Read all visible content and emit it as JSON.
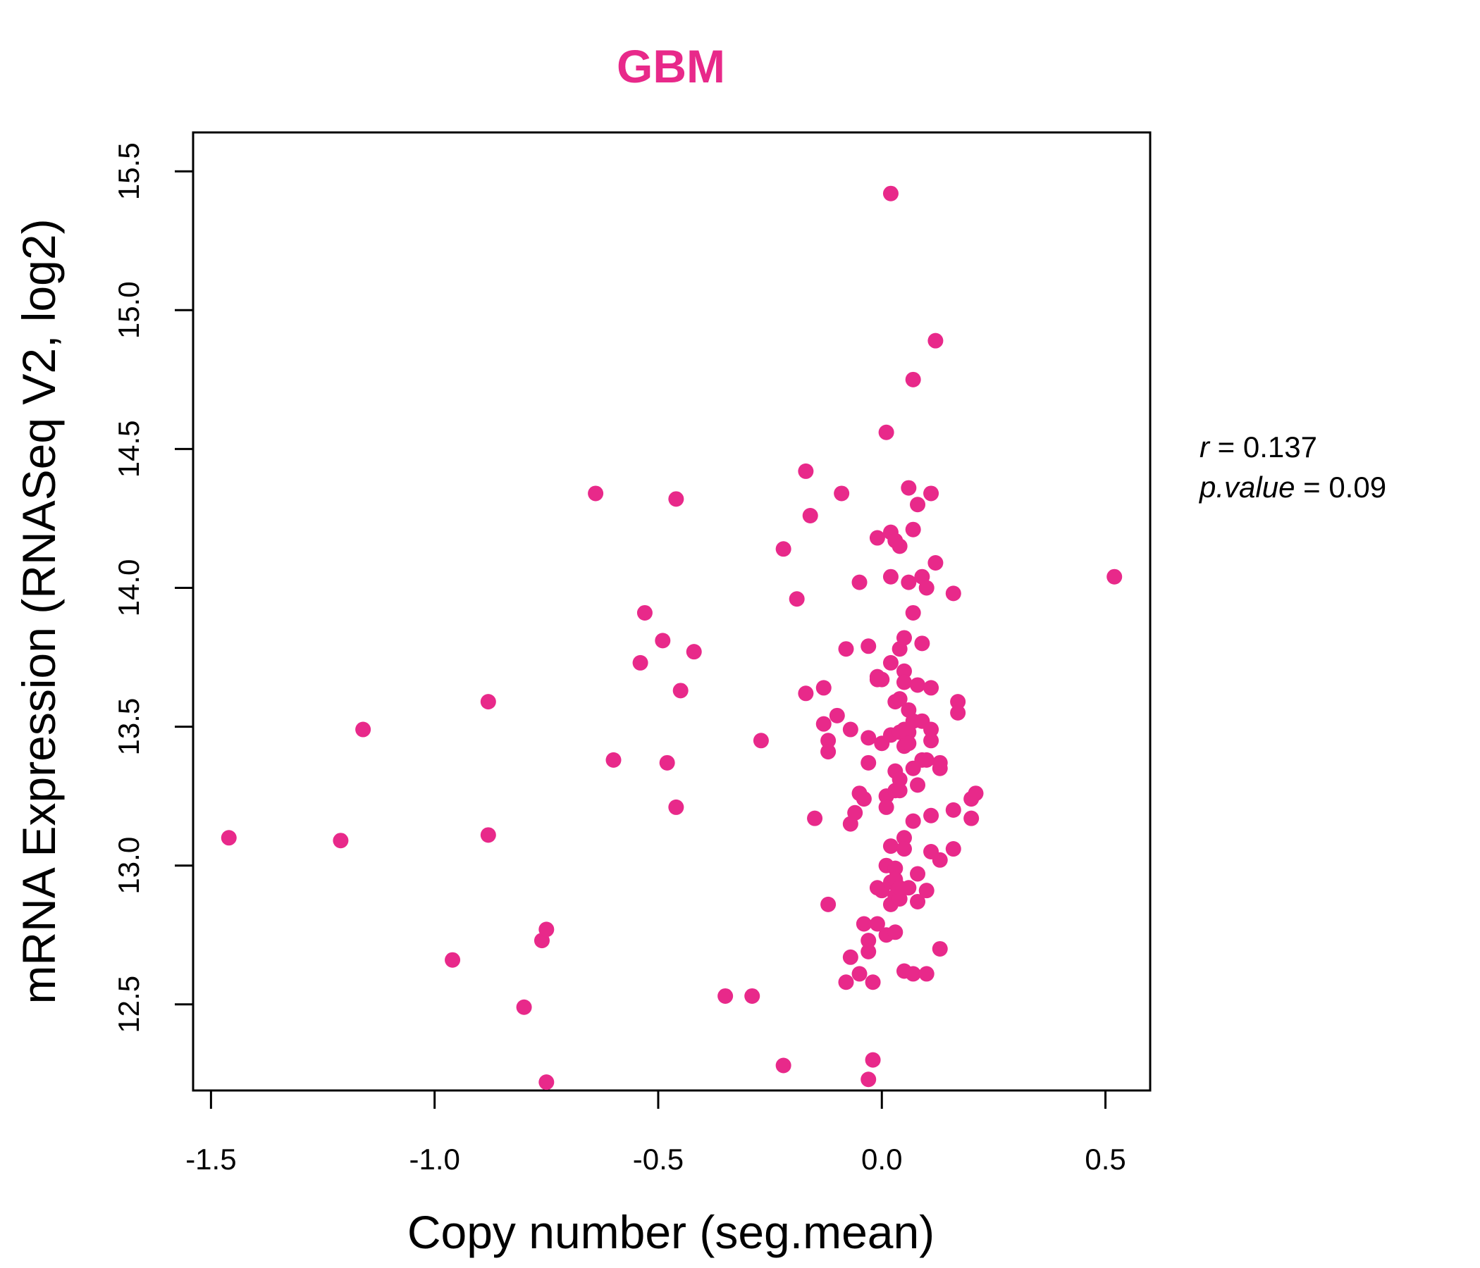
{
  "chart_data": {
    "type": "scatter",
    "title": "GBM",
    "xlabel": "Copy number (seg.mean)",
    "ylabel": "mRNA Expression (RNASeq V2, log2)",
    "xlim": [
      -1.54,
      0.6
    ],
    "ylim": [
      12.19,
      15.64
    ],
    "x_ticks": [
      -1.5,
      -1.0,
      -0.5,
      0.0,
      0.5
    ],
    "x_tick_labels": [
      "-1.5",
      "-1.0",
      "-0.5",
      "0.0",
      "0.5"
    ],
    "y_ticks": [
      12.5,
      13.0,
      13.5,
      14.0,
      14.5,
      15.0,
      15.5
    ],
    "y_tick_labels": [
      "12.5",
      "13.0",
      "13.5",
      "14.0",
      "14.5",
      "15.0",
      "15.5"
    ],
    "grid": false,
    "legend": "none",
    "color": "#E8298A",
    "annotations": {
      "r_label": "r",
      "r_value": "0.137",
      "p_label": "p.value",
      "p_value": "0.09"
    },
    "points": [
      [
        -1.46,
        13.1
      ],
      [
        -1.21,
        13.09
      ],
      [
        -1.16,
        13.49
      ],
      [
        -0.96,
        12.66
      ],
      [
        -0.88,
        13.59
      ],
      [
        -0.88,
        13.11
      ],
      [
        -0.8,
        12.49
      ],
      [
        -0.76,
        12.73
      ],
      [
        -0.75,
        12.77
      ],
      [
        -0.75,
        12.22
      ],
      [
        -0.64,
        14.34
      ],
      [
        -0.6,
        13.38
      ],
      [
        -0.53,
        13.91
      ],
      [
        -0.54,
        13.73
      ],
      [
        -0.49,
        13.81
      ],
      [
        -0.48,
        13.37
      ],
      [
        -0.46,
        14.32
      ],
      [
        -0.46,
        13.21
      ],
      [
        -0.45,
        13.63
      ],
      [
        -0.42,
        13.77
      ],
      [
        -0.35,
        12.53
      ],
      [
        -0.29,
        12.53
      ],
      [
        -0.27,
        13.45
      ],
      [
        -0.22,
        14.14
      ],
      [
        -0.22,
        12.28
      ],
      [
        -0.19,
        13.96
      ],
      [
        -0.17,
        14.42
      ],
      [
        -0.16,
        14.26
      ],
      [
        -0.17,
        13.62
      ],
      [
        -0.15,
        13.17
      ],
      [
        -0.13,
        13.64
      ],
      [
        -0.13,
        13.51
      ],
      [
        -0.12,
        13.45
      ],
      [
        -0.12,
        13.41
      ],
      [
        -0.12,
        12.86
      ],
      [
        -0.1,
        13.54
      ],
      [
        -0.09,
        14.34
      ],
      [
        -0.08,
        13.78
      ],
      [
        -0.07,
        13.49
      ],
      [
        -0.07,
        13.15
      ],
      [
        -0.07,
        12.67
      ],
      [
        -0.08,
        12.58
      ],
      [
        -0.06,
        13.19
      ],
      [
        -0.05,
        14.02
      ],
      [
        -0.05,
        13.26
      ],
      [
        -0.04,
        13.24
      ],
      [
        -0.05,
        12.61
      ],
      [
        -0.04,
        12.79
      ],
      [
        -0.03,
        13.79
      ],
      [
        -0.03,
        13.46
      ],
      [
        -0.03,
        13.37
      ],
      [
        -0.03,
        12.73
      ],
      [
        -0.03,
        12.69
      ],
      [
        -0.02,
        12.58
      ],
      [
        -0.02,
        12.3
      ],
      [
        -0.03,
        12.23
      ],
      [
        -0.01,
        14.18
      ],
      [
        -0.01,
        13.68
      ],
      [
        -0.01,
        13.67
      ],
      [
        -0.01,
        12.92
      ],
      [
        -0.01,
        12.79
      ],
      [
        0.0,
        13.67
      ],
      [
        0.0,
        13.44
      ],
      [
        0.01,
        14.56
      ],
      [
        0.01,
        13.25
      ],
      [
        0.01,
        13.21
      ],
      [
        0.01,
        13.0
      ],
      [
        0.0,
        12.91
      ],
      [
        0.01,
        12.75
      ],
      [
        0.02,
        15.42
      ],
      [
        0.02,
        14.2
      ],
      [
        0.02,
        14.04
      ],
      [
        0.02,
        13.73
      ],
      [
        0.02,
        13.47
      ],
      [
        0.02,
        13.07
      ],
      [
        0.02,
        12.94
      ],
      [
        0.02,
        12.86
      ],
      [
        0.03,
        14.17
      ],
      [
        0.03,
        13.59
      ],
      [
        0.03,
        13.34
      ],
      [
        0.03,
        13.27
      ],
      [
        0.03,
        12.99
      ],
      [
        0.03,
        12.95
      ],
      [
        0.03,
        12.89
      ],
      [
        0.03,
        12.76
      ],
      [
        0.04,
        14.15
      ],
      [
        0.04,
        13.78
      ],
      [
        0.04,
        13.6
      ],
      [
        0.04,
        13.48
      ],
      [
        0.04,
        13.31
      ],
      [
        0.04,
        13.27
      ],
      [
        0.04,
        12.88
      ],
      [
        0.04,
        12.92
      ],
      [
        0.05,
        13.82
      ],
      [
        0.05,
        13.7
      ],
      [
        0.05,
        13.66
      ],
      [
        0.05,
        13.49
      ],
      [
        0.05,
        13.43
      ],
      [
        0.05,
        13.1
      ],
      [
        0.05,
        13.06
      ],
      [
        0.05,
        12.62
      ],
      [
        0.06,
        14.36
      ],
      [
        0.06,
        14.02
      ],
      [
        0.06,
        13.56
      ],
      [
        0.06,
        13.48
      ],
      [
        0.06,
        13.44
      ],
      [
        0.06,
        12.92
      ],
      [
        0.07,
        14.75
      ],
      [
        0.07,
        14.21
      ],
      [
        0.07,
        13.91
      ],
      [
        0.07,
        13.52
      ],
      [
        0.07,
        13.35
      ],
      [
        0.07,
        13.16
      ],
      [
        0.07,
        12.61
      ],
      [
        0.08,
        14.3
      ],
      [
        0.08,
        13.65
      ],
      [
        0.08,
        13.29
      ],
      [
        0.08,
        12.97
      ],
      [
        0.08,
        12.87
      ],
      [
        0.09,
        14.04
      ],
      [
        0.09,
        13.8
      ],
      [
        0.09,
        13.52
      ],
      [
        0.09,
        13.38
      ],
      [
        0.1,
        14.0
      ],
      [
        0.1,
        13.38
      ],
      [
        0.1,
        12.91
      ],
      [
        0.1,
        12.61
      ],
      [
        0.11,
        14.34
      ],
      [
        0.11,
        13.64
      ],
      [
        0.11,
        13.49
      ],
      [
        0.11,
        13.45
      ],
      [
        0.11,
        13.18
      ],
      [
        0.11,
        13.05
      ],
      [
        0.12,
        14.89
      ],
      [
        0.12,
        14.09
      ],
      [
        0.13,
        13.02
      ],
      [
        0.13,
        12.7
      ],
      [
        0.13,
        13.37
      ],
      [
        0.13,
        13.35
      ],
      [
        0.16,
        13.98
      ],
      [
        0.16,
        13.2
      ],
      [
        0.16,
        13.06
      ],
      [
        0.17,
        13.59
      ],
      [
        0.17,
        13.55
      ],
      [
        0.2,
        13.24
      ],
      [
        0.2,
        13.17
      ],
      [
        0.21,
        13.26
      ],
      [
        0.52,
        14.04
      ]
    ]
  }
}
